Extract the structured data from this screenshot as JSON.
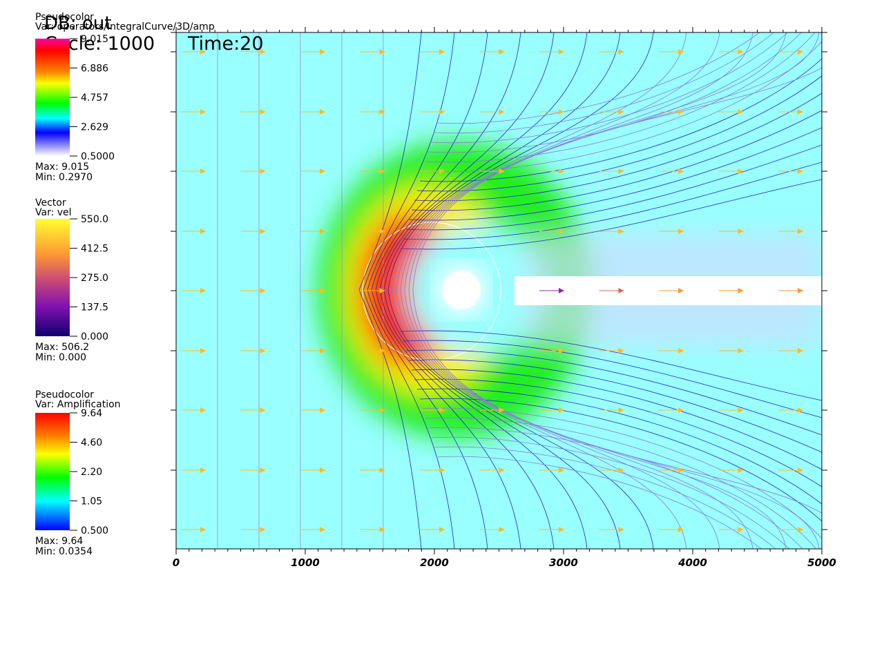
{
  "header": {
    "db": "DB: out",
    "cycle": "Cycle: 1000",
    "time": "Time:20"
  },
  "legends": [
    {
      "title": "Pseudocolor",
      "var": "Var: operators/IntegralCurve/3D/amp",
      "labels": [
        "9.015",
        "6.886",
        "4.757",
        "2.629",
        "0.5000"
      ],
      "max": "Max: 9.015",
      "min": "Min: 0.2970"
    },
    {
      "title": "Vector",
      "var": "Var: vel",
      "labels": [
        "550.0",
        "412.5",
        "275.0",
        "137.5",
        "0.000"
      ],
      "max": "Max: 506.2",
      "min": "Min: 0.000"
    },
    {
      "title": "Pseudocolor",
      "var": "Var: Amplification",
      "labels": [
        "9.64",
        "4.60",
        "2.20",
        "1.05",
        "0.500"
      ],
      "max": "Max: 9.64",
      "min": "Min: 0.0354"
    }
  ],
  "x_axis": {
    "xlim": [
      0,
      5000
    ],
    "xticks": [
      0,
      1000,
      2000,
      3000,
      4000,
      5000
    ]
  }
}
